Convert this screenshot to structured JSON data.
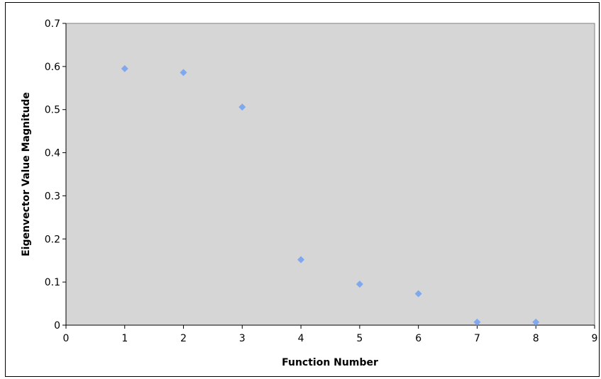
{
  "chart_data": {
    "type": "scatter",
    "title": "",
    "xlabel": "Function Number",
    "ylabel": "Eigenvector Value Magnitude",
    "xlim": [
      0,
      9
    ],
    "ylim": [
      0,
      0.7
    ],
    "xticks": [
      "0",
      "1",
      "2",
      "3",
      "4",
      "5",
      "6",
      "7",
      "8",
      "9"
    ],
    "yticks": [
      "0",
      "0.1",
      "0.2",
      "0.3",
      "0.4",
      "0.5",
      "0.6",
      "0.7"
    ],
    "grid": false,
    "legend": "none",
    "plot_background": "#d6d6d6",
    "marker_color": "#7fa8ee",
    "series": [
      {
        "points": [
          {
            "x": 1,
            "y": 0.595
          },
          {
            "x": 2,
            "y": 0.586
          },
          {
            "x": 3,
            "y": 0.506
          },
          {
            "x": 4,
            "y": 0.152
          },
          {
            "x": 5,
            "y": 0.095
          },
          {
            "x": 6,
            "y": 0.073
          },
          {
            "x": 7,
            "y": 0.007
          },
          {
            "x": 8,
            "y": 0.007
          }
        ]
      }
    ]
  }
}
